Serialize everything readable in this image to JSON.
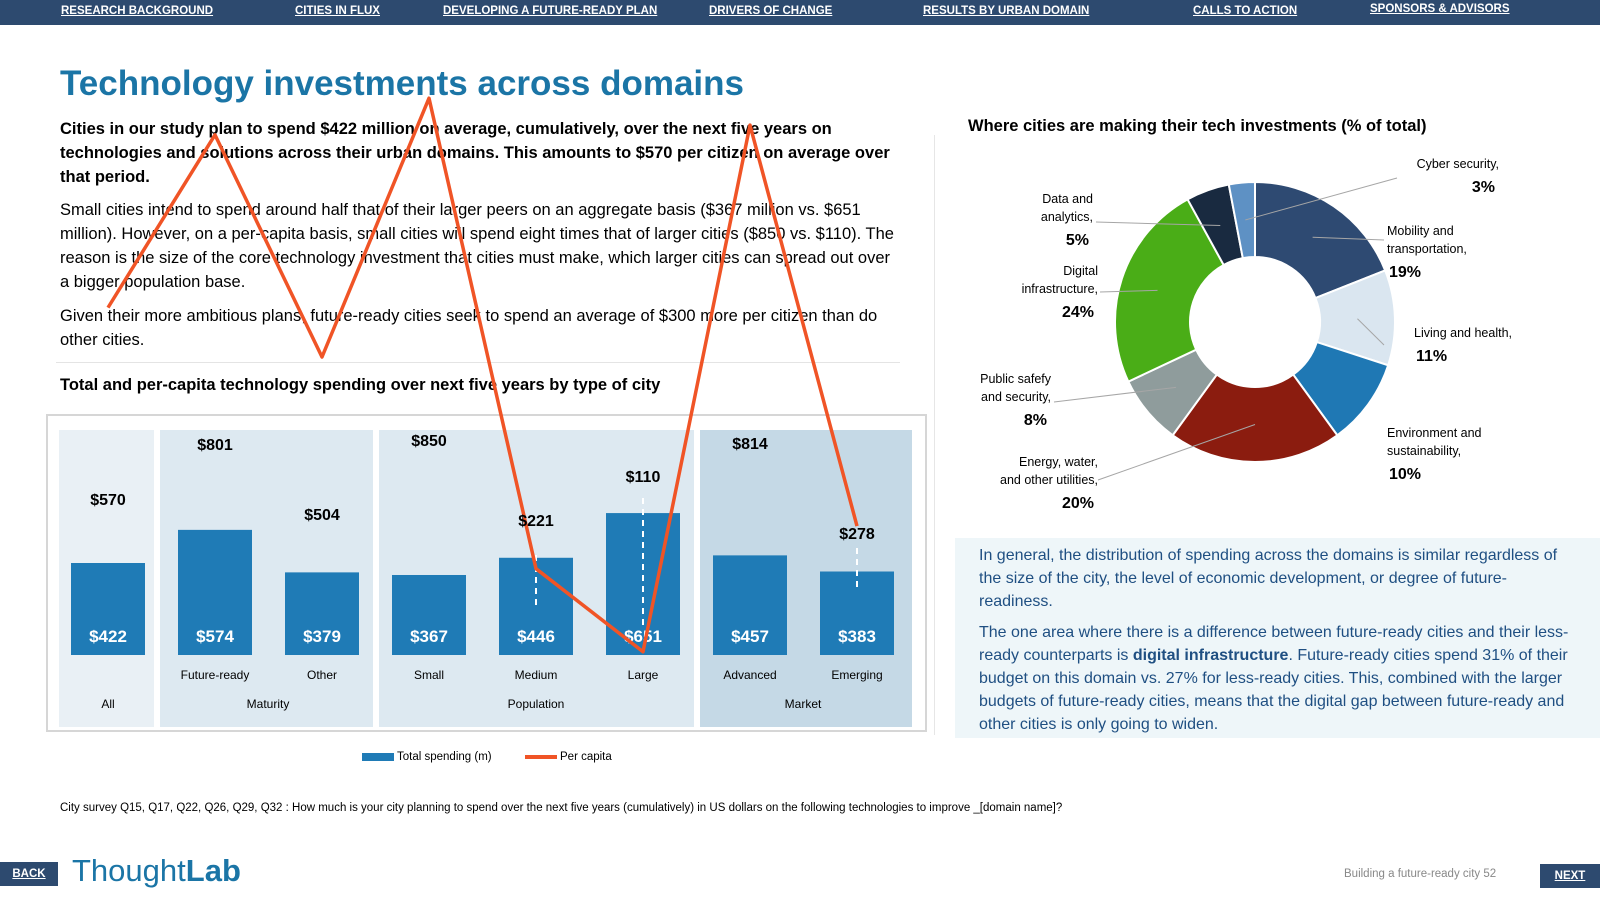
{
  "nav": {
    "items": [
      "RESEARCH BACKGROUND",
      "CITIES IN FLUX",
      "DEVELOPING A FUTURE-READY PLAN",
      "DRIVERS OF CHANGE",
      "RESULTS BY URBAN DOMAIN",
      "CALLS TO ACTION",
      "SPONSORS & ADVISORS"
    ]
  },
  "page": {
    "title": "Technology investments across domains",
    "lead": "Cities in our study plan to spend $422 million on average, cumulatively, over the next five years on technologies and solutions across their urban domains. This amounts to $570 per citizen on average over that period.",
    "para1": "Small cities intend to spend around half that of their larger peers on an aggregate basis ($367 million vs. $651 million). However, on a per-capita basis, small cities will spend eight times that of larger cities ($850 vs. $110). The reason is the size of the core technology investment that cities must make, which larger cities can spread out over a bigger population base.",
    "para2": "Given their more ambitious plans, future-ready cities seek to spend an average of $300 more per citizen than do other cities."
  },
  "info": {
    "p1": "In general, the distribution of spending across the domains is similar regardless of the size of the city, the level of economic development, or degree of future-readiness.",
    "p2_before": "The one area where there is a difference between future-ready cities and their less-ready counterparts is ",
    "p2_bold": "digital infrastructure",
    "p2_after": ". Future-ready cities spend 31% of their budget on this domain vs. 27% for less-ready cities. This, combined with the larger budgets of future-ready cities, means that the digital gap between future-ready and other cities is only going to widen."
  },
  "footnote": "City survey Q15, Q17, Q22, Q26, Q29, Q32 : How much is your city planning to spend over the next five years (cumulatively) in US dollars on the following technologies to improve _[domain name]?",
  "footer": {
    "back": "BACK",
    "next": "NEXT",
    "logo_a": "Thought",
    "logo_b": "Lab",
    "page_label": "Building a future-ready city  52"
  },
  "chart_data": [
    {
      "type": "bar",
      "title": "Total and per-capita technology spending over next five years by type of city",
      "categories": [
        "All",
        "Future-ready",
        "Other",
        "Small",
        "Medium",
        "Large",
        "Advanced",
        "Emerging"
      ],
      "groups": [
        {
          "label": "All",
          "categories": [
            "All"
          ]
        },
        {
          "label": "Maturity",
          "categories": [
            "Future-ready",
            "Other"
          ]
        },
        {
          "label": "Population",
          "categories": [
            "Small",
            "Medium",
            "Large"
          ]
        },
        {
          "label": "Market",
          "categories": [
            "Advanced",
            "Emerging"
          ]
        }
      ],
      "series": [
        {
          "name": "Total spending (m)",
          "kind": "bar",
          "color": "#1f7bb6",
          "values": [
            422,
            574,
            379,
            367,
            446,
            651,
            457,
            383
          ],
          "labels": [
            "$422",
            "$574",
            "$379",
            "$367",
            "$446",
            "$651",
            "$457",
            "$383"
          ]
        },
        {
          "name": "Per capita",
          "kind": "line",
          "color": "#f05426",
          "values": [
            570,
            801,
            504,
            850,
            221,
            110,
            814,
            278
          ],
          "labels": [
            "$570",
            "$801",
            "$504",
            "$850",
            "$221",
            "$110",
            "$814",
            "$278"
          ]
        }
      ],
      "legend": "bottom",
      "group_backgrounds": [
        "#e9f0f5",
        "#dde9f1",
        "#dde9f1",
        "#c5d9e6"
      ]
    },
    {
      "type": "pie",
      "title": "Where cities are making their tech investments (% of total)",
      "donut": true,
      "slices": [
        {
          "label": [
            "Mobility and",
            "transportation,"
          ],
          "value": 19,
          "text": "19%",
          "color": "#2e4a72"
        },
        {
          "label": [
            "Living and health,"
          ],
          "value": 11,
          "text": "11%",
          "color": "#dae6f0"
        },
        {
          "label": [
            "Environment and",
            "sustainability,"
          ],
          "value": 10,
          "text": "10%",
          "color": "#1f78b4"
        },
        {
          "label": [
            "Energy, water,",
            "and other utilities,"
          ],
          "value": 20,
          "text": "20%",
          "color": "#8b1c0f"
        },
        {
          "label": [
            "Public safefy",
            "and security,"
          ],
          "value": 8,
          "text": "8%",
          "color": "#8f9c9c"
        },
        {
          "label": [
            "Digital",
            "infrastructure,"
          ],
          "value": 24,
          "text": "24%",
          "color": "#4aad17"
        },
        {
          "label": [
            "Data and",
            "analytics,"
          ],
          "value": 5,
          "text": "5%",
          "color": "#192a40"
        },
        {
          "label": [
            "Cyber security,"
          ],
          "value": 3,
          "text": "3%",
          "color": "#5e91c4"
        }
      ]
    }
  ]
}
